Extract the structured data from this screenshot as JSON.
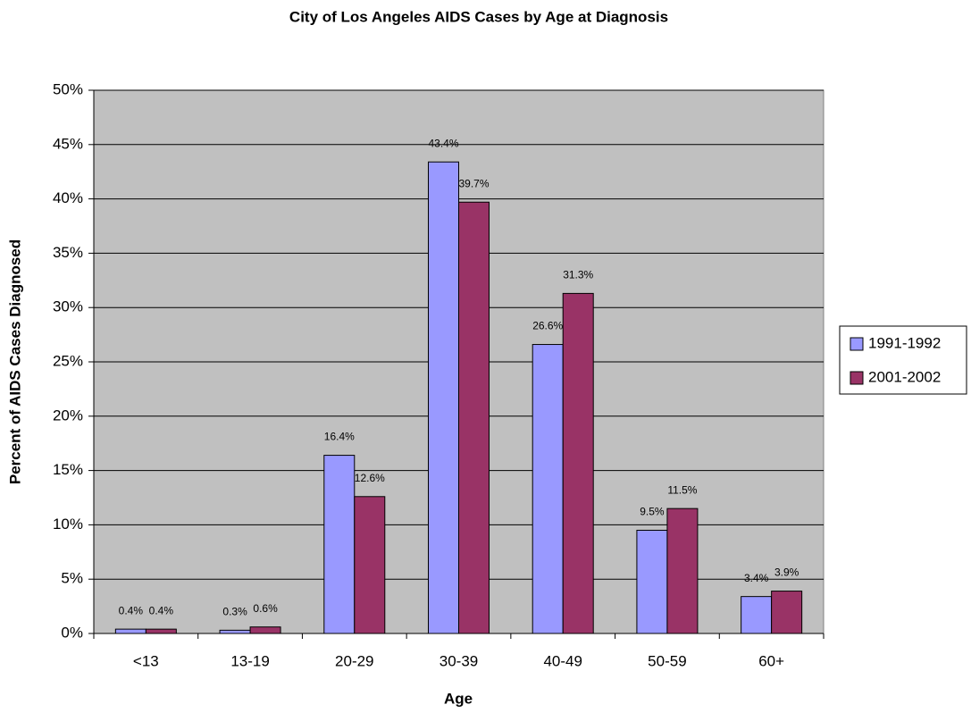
{
  "chart_data": {
    "type": "bar",
    "title": "City of Los Angeles AIDS Cases by Age at Diagnosis",
    "xlabel": "Age",
    "ylabel": "Percent of AIDS Cases Diagnosed",
    "categories": [
      "<13",
      "13-19",
      "20-29",
      "30-39",
      "40-49",
      "50-59",
      "60+"
    ],
    "series": [
      {
        "name": "1991-1992",
        "color": "#9999ff",
        "values": [
          0.4,
          0.3,
          16.4,
          43.4,
          26.6,
          9.5,
          3.4
        ],
        "value_labels": [
          "0.4%",
          "0.3%",
          "16.4%",
          "43.4%",
          "26.6%",
          "9.5%",
          "3.4%"
        ]
      },
      {
        "name": "2001-2002",
        "color": "#993366",
        "values": [
          0.4,
          0.6,
          12.6,
          39.7,
          31.3,
          11.5,
          3.9
        ],
        "value_labels": [
          "0.4%",
          "0.6%",
          "12.6%",
          "39.7%",
          "31.3%",
          "11.5%",
          "3.9%"
        ]
      }
    ],
    "ylim": [
      0,
      50
    ],
    "yticks": [
      {
        "value": 0,
        "label": "0%"
      },
      {
        "value": 5,
        "label": "5%"
      },
      {
        "value": 10,
        "label": "10%"
      },
      {
        "value": 15,
        "label": "15%"
      },
      {
        "value": 20,
        "label": "20%"
      },
      {
        "value": 25,
        "label": "25%"
      },
      {
        "value": 30,
        "label": "30%"
      },
      {
        "value": 35,
        "label": "35%"
      },
      {
        "value": 40,
        "label": "40%"
      },
      {
        "value": 45,
        "label": "45%"
      },
      {
        "value": 50,
        "label": "50%"
      }
    ],
    "grid": true,
    "legend": "right",
    "background": "#c0c0c0"
  }
}
